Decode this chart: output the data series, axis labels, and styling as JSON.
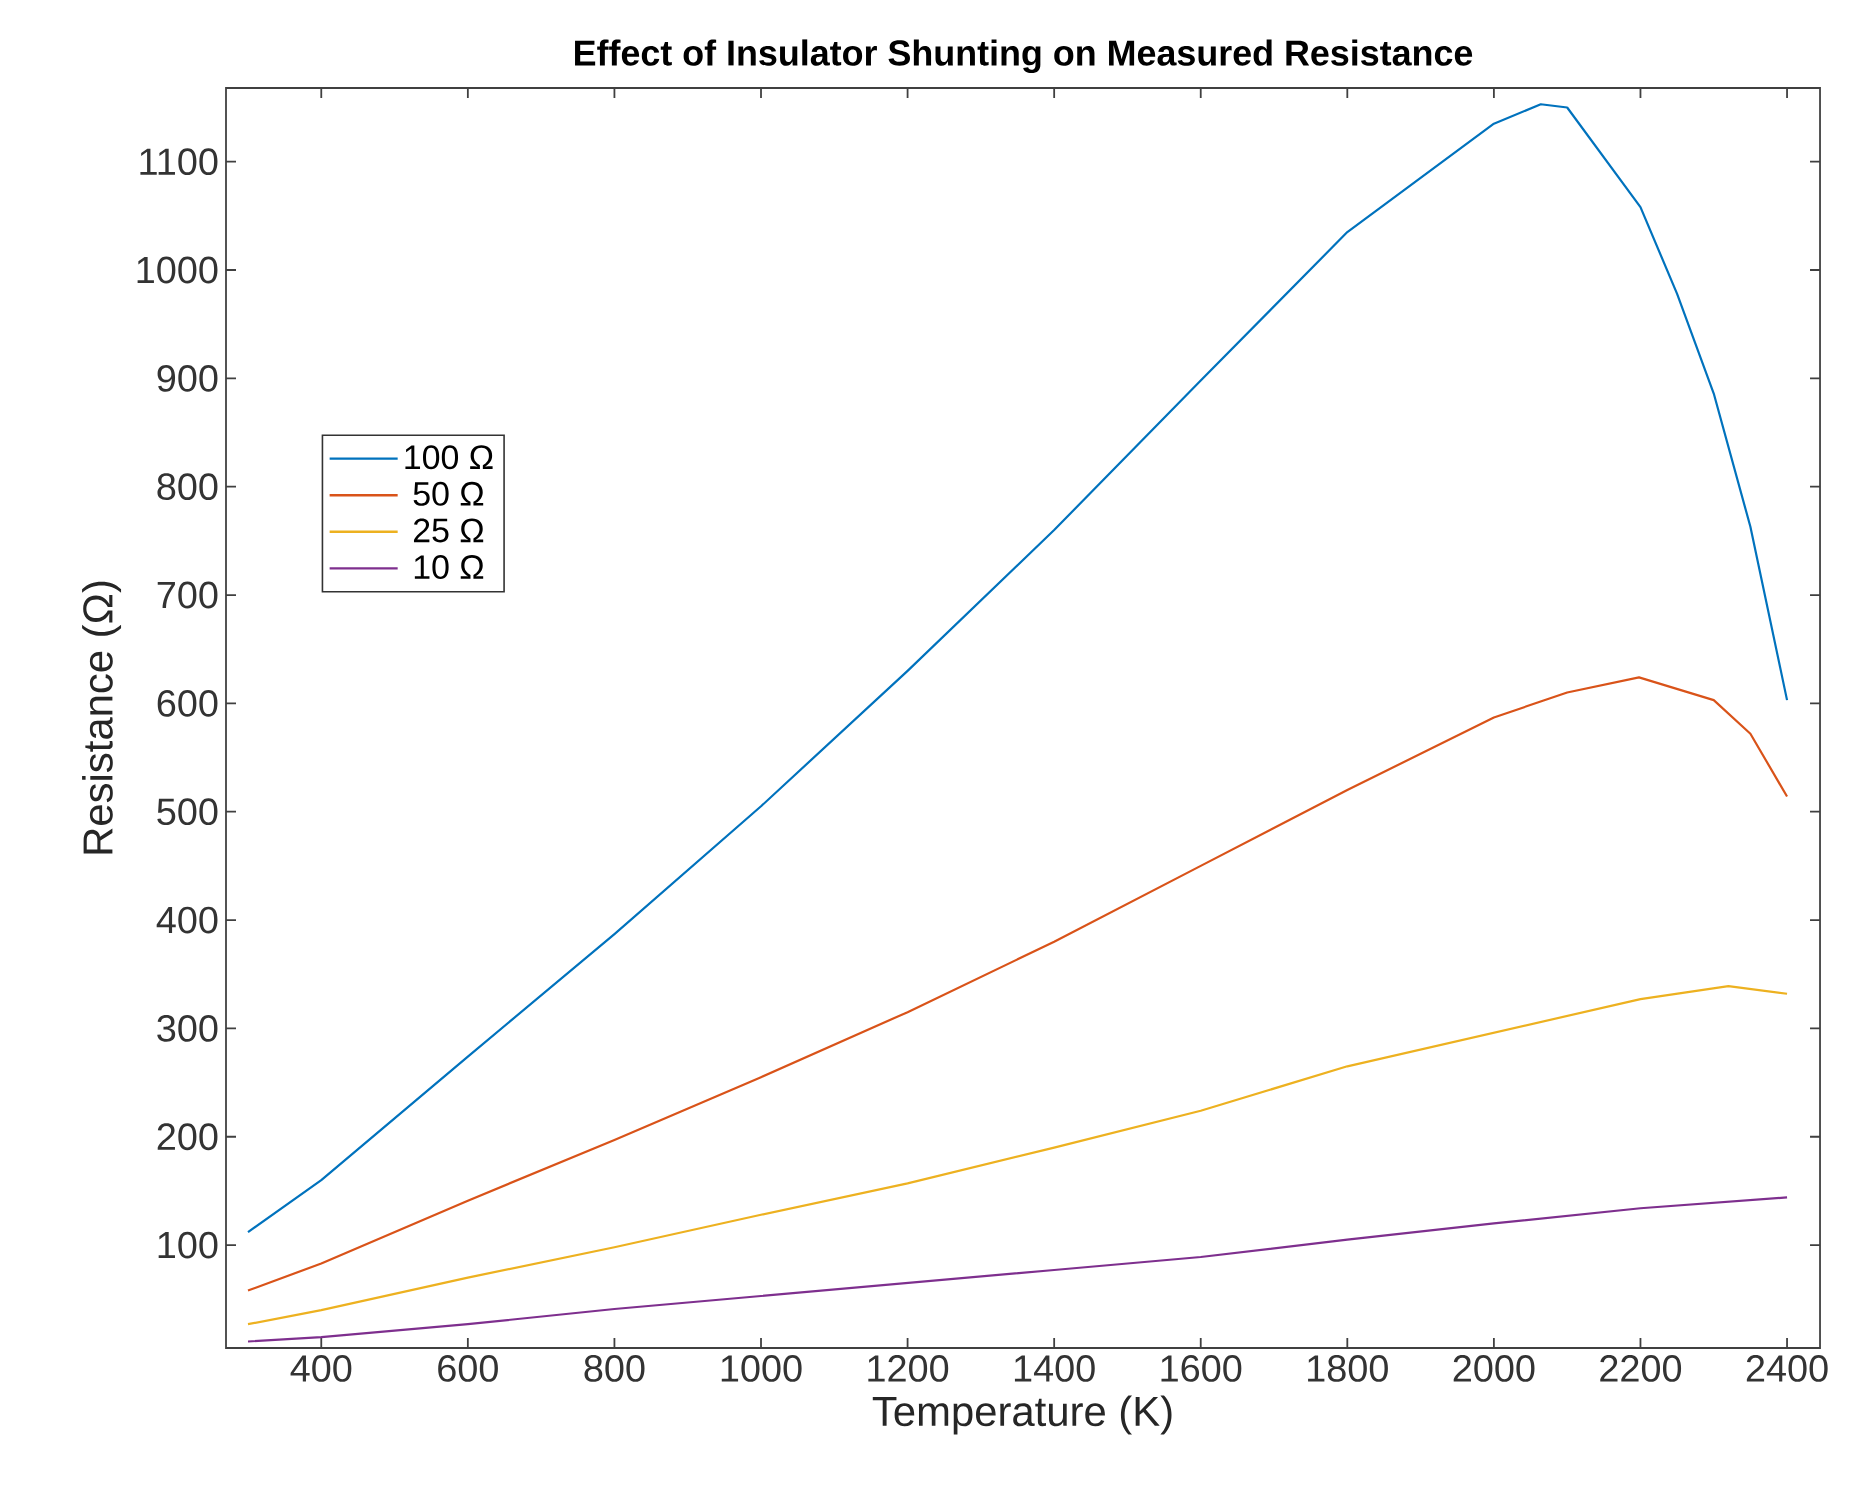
{
  "chart_data": {
    "type": "line",
    "title": "Effect of Insulator Shunting on Measured Resistance",
    "xlabel": "Temperature (K)",
    "ylabel": "Resistance (Ω)",
    "xlim": [
      270,
      2445
    ],
    "ylim": [
      5,
      1168
    ],
    "xticks": [
      400,
      600,
      800,
      1000,
      1200,
      1400,
      1600,
      1800,
      2000,
      2200,
      2400
    ],
    "yticks": [
      100,
      200,
      300,
      400,
      500,
      600,
      700,
      800,
      900,
      1000,
      1100
    ],
    "grid": false,
    "legend": "left",
    "marker": "none",
    "line_style": "solid",
    "series": [
      {
        "name": "100 Ω",
        "color": "#0072bd",
        "x": [
          300,
          400,
          600,
          800,
          1000,
          1200,
          1400,
          1600,
          1800,
          2000,
          2064,
          2100,
          2200,
          2250,
          2300,
          2350,
          2400
        ],
        "values": [
          112,
          160,
          274,
          387,
          505,
          630,
          760,
          898,
          1035,
          1135,
          1153,
          1150,
          1058,
          978,
          886,
          763,
          603
        ]
      },
      {
        "name": "50 Ω",
        "color": "#d95319",
        "x": [
          300,
          400,
          600,
          800,
          1000,
          1200,
          1400,
          1600,
          1800,
          2000,
          2100,
          2198,
          2300,
          2350,
          2400
        ],
        "values": [
          58,
          83,
          141,
          197,
          255,
          315,
          380,
          450,
          520,
          587,
          610,
          624,
          603,
          572,
          514
        ]
      },
      {
        "name": "25 Ω",
        "color": "#edb120",
        "x": [
          300,
          400,
          600,
          800,
          1000,
          1200,
          1400,
          1600,
          1800,
          2000,
          2200,
          2320,
          2400
        ],
        "values": [
          27,
          40,
          70,
          98,
          128,
          157,
          190,
          224,
          265,
          296,
          327,
          339,
          332
        ]
      },
      {
        "name": "10 Ω",
        "color": "#7e2f8e",
        "x": [
          300,
          400,
          600,
          800,
          1000,
          1200,
          1400,
          1600,
          1800,
          2000,
          2200,
          2400
        ],
        "values": [
          11,
          15,
          27,
          41,
          53,
          65,
          77,
          89,
          105,
          120,
          134,
          144
        ]
      }
    ]
  }
}
